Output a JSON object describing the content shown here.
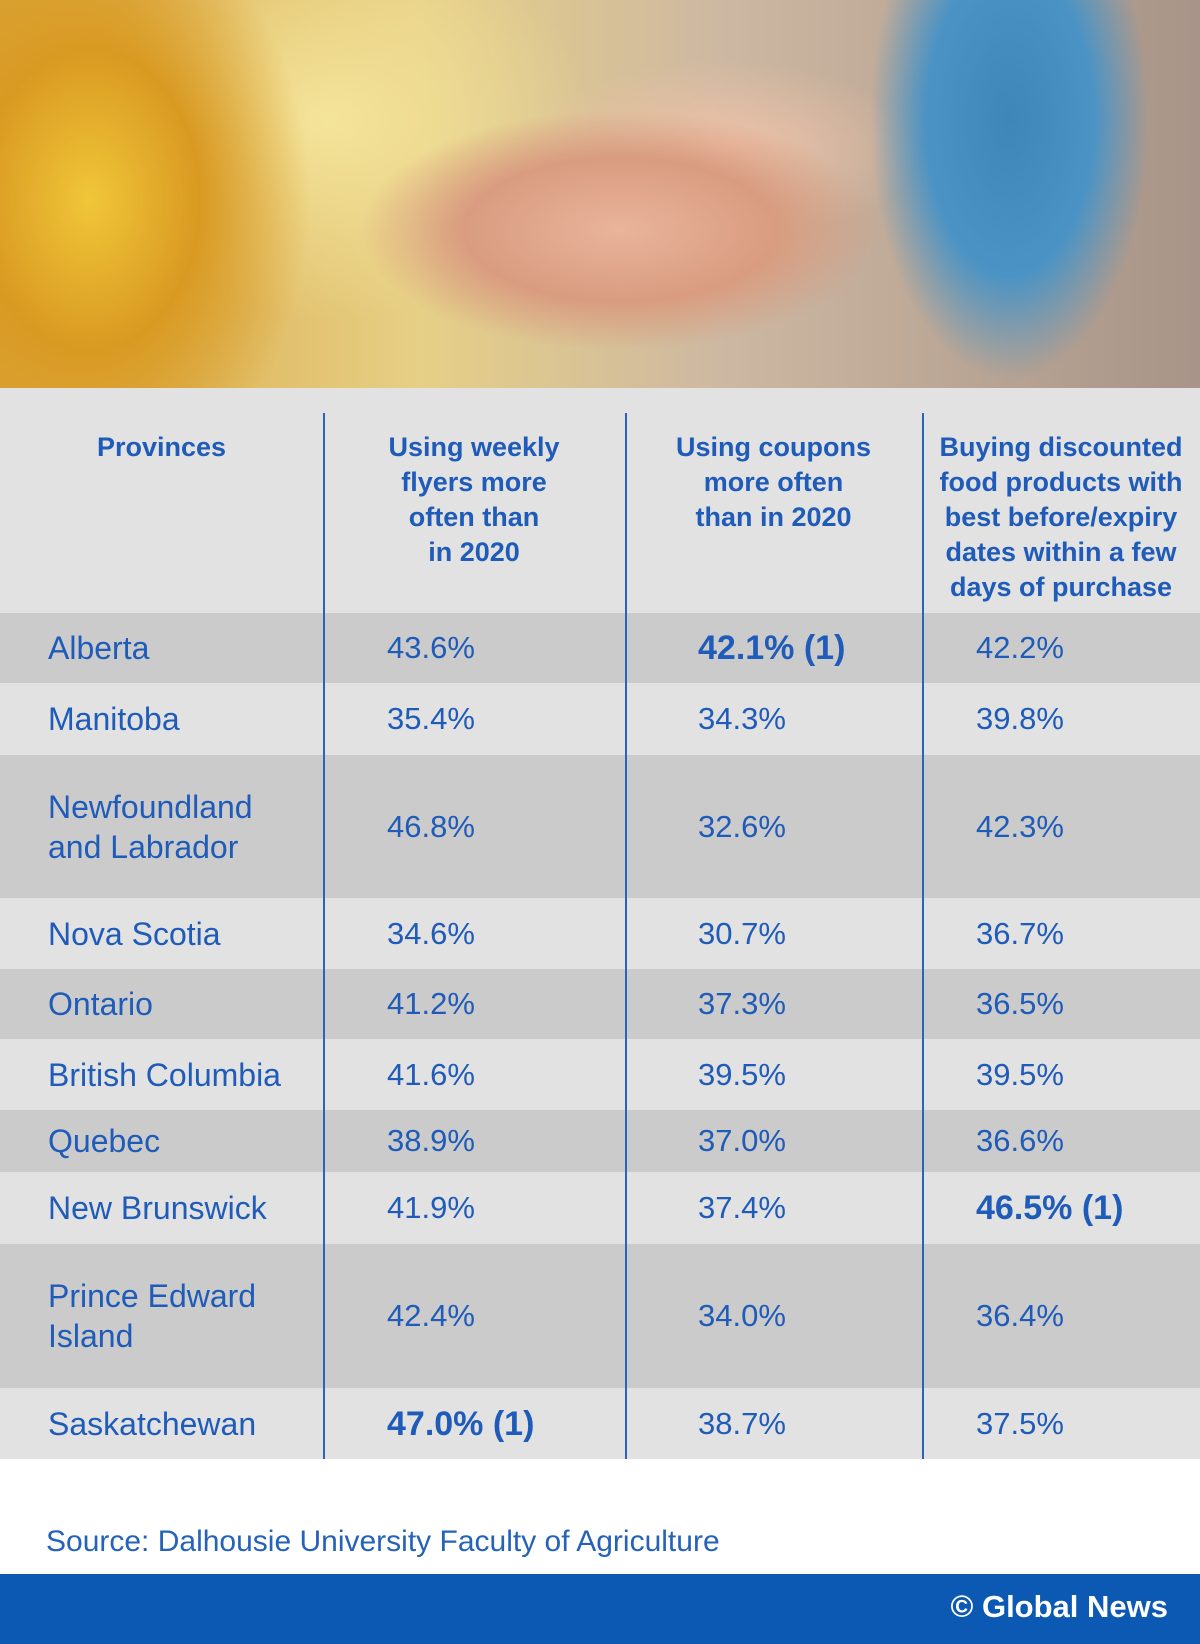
{
  "table": {
    "header": [
      [
        "Provinces"
      ],
      [
        "Using weekly",
        "flyers more",
        "often than",
        "in 2020"
      ],
      [
        "Using coupons",
        "more often",
        "than in 2020"
      ],
      [
        "Buying discounted",
        "food products with",
        "best before/expiry",
        "dates within a few",
        "days of purchase"
      ]
    ],
    "rows": [
      {
        "province": [
          "Alberta"
        ],
        "cells": [
          "43.6%",
          "42.1% (1)",
          "42.2%"
        ],
        "bold": 1
      },
      {
        "province": [
          "Manitoba"
        ],
        "cells": [
          "35.4%",
          "34.3%",
          "39.8%"
        ]
      },
      {
        "province": [
          "Newfoundland",
          "and Labrador"
        ],
        "cells": [
          "46.8%",
          "32.6%",
          "42.3%"
        ]
      },
      {
        "province": [
          "Nova Scotia"
        ],
        "cells": [
          "34.6%",
          "30.7%",
          "36.7%"
        ]
      },
      {
        "province": [
          "Ontario"
        ],
        "cells": [
          "41.2%",
          "37.3%",
          "36.5%"
        ]
      },
      {
        "province": [
          "British Columbia"
        ],
        "cells": [
          "41.6%",
          "39.5%",
          "39.5%"
        ]
      },
      {
        "province": [
          "Quebec"
        ],
        "cells": [
          "38.9%",
          "37.0%",
          "36.6%"
        ]
      },
      {
        "province": [
          "New Brunswick"
        ],
        "cells": [
          "41.9%",
          "37.4%",
          "46.5% (1)"
        ],
        "bold": 2
      },
      {
        "province": [
          "Prince Edward",
          "Island"
        ],
        "cells": [
          "42.4%",
          "34.0%",
          "36.4%"
        ]
      },
      {
        "province": [
          "Saskatchewan"
        ],
        "cells": [
          "47.0% (1)",
          "38.7%",
          "37.5%"
        ],
        "bold": 0
      }
    ]
  },
  "source": "Source: Dalhousie University Faculty of Agriculture",
  "credit": "© Global News"
}
